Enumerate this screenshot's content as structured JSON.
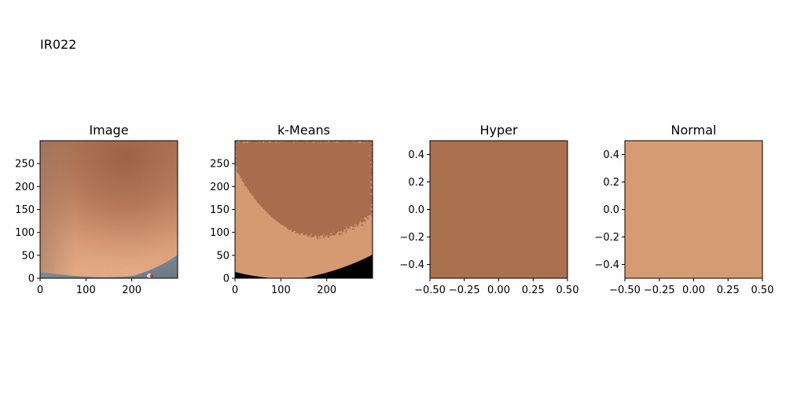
{
  "figure_title": "IR022",
  "chart_data": [
    {
      "type": "image",
      "title": "Image",
      "xlim": [
        0,
        300
      ],
      "ylim": [
        300,
        0
      ],
      "xticks": [
        0,
        100,
        200
      ],
      "yticks": [
        0,
        50,
        100,
        150,
        200,
        250
      ],
      "xtick_labels": [
        "0",
        "100",
        "200"
      ],
      "ytick_labels": [
        "0",
        "50",
        "100",
        "150",
        "200",
        "250"
      ],
      "content": "skin photo, dark brown center-top to light peach lower-left, grey fabric along bottom",
      "colors": {
        "dark": "#a86a4c",
        "mid": "#c9896a",
        "light": "#e8aa82",
        "fabric": "#7b8791"
      }
    },
    {
      "type": "image",
      "title": "k-Means",
      "xlim": [
        0,
        300
      ],
      "ylim": [
        300,
        0
      ],
      "xticks": [
        0,
        100,
        200
      ],
      "yticks": [
        0,
        50,
        100,
        150,
        200,
        250
      ],
      "xtick_labels": [
        "0",
        "100",
        "200"
      ],
      "ytick_labels": [
        "0",
        "50",
        "100",
        "150",
        "200",
        "250"
      ],
      "content": "3-cluster segmentation: dark brown upper region, light peach lower region, black bottom strip",
      "colors": {
        "cluster_dark": "#a96c4e",
        "cluster_light": "#d59a72",
        "cluster_black": "#000000"
      }
    },
    {
      "type": "image",
      "title": "Hyper",
      "xlim": [
        -0.5,
        0.5
      ],
      "ylim": [
        0.5,
        -0.5
      ],
      "xticks": [
        -0.5,
        -0.25,
        0.0,
        0.25,
        0.5
      ],
      "yticks": [
        -0.4,
        -0.2,
        0.0,
        0.2,
        0.4
      ],
      "xtick_labels": [
        "−0.50",
        "−0.25",
        "0.00",
        "0.25",
        "0.50"
      ],
      "ytick_labels": [
        "−0.4",
        "−0.2",
        "0.0",
        "0.2",
        "0.4"
      ],
      "fill": "#ab7050"
    },
    {
      "type": "image",
      "title": "Normal",
      "xlim": [
        -0.5,
        0.5
      ],
      "ylim": [
        0.5,
        -0.5
      ],
      "xticks": [
        -0.5,
        -0.25,
        0.0,
        0.25,
        0.5
      ],
      "yticks": [
        -0.4,
        -0.2,
        0.0,
        0.2,
        0.4
      ],
      "xtick_labels": [
        "−0.50",
        "−0.25",
        "0.00",
        "0.25",
        "0.50"
      ],
      "ytick_labels": [
        "−0.4",
        "−0.2",
        "0.0",
        "0.2",
        "0.4"
      ],
      "fill": "#d59b72"
    }
  ]
}
